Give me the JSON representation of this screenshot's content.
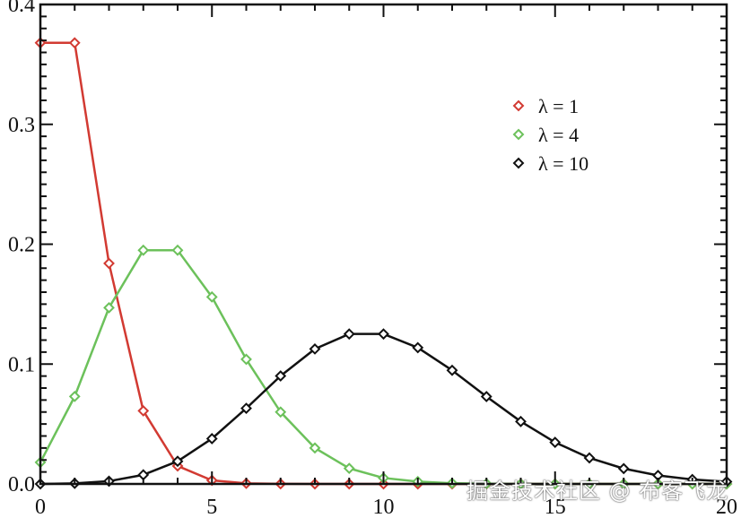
{
  "chart_data": {
    "type": "line",
    "title": "",
    "xlabel": "",
    "ylabel": "",
    "xlim": [
      0,
      20
    ],
    "ylim": [
      0,
      0.4
    ],
    "x_ticks": [
      0,
      5,
      10,
      15,
      20
    ],
    "y_ticks": [
      0.0,
      0.1,
      0.2,
      0.3,
      0.4
    ],
    "x_tick_labels": [
      "0",
      "5",
      "10",
      "15",
      "20"
    ],
    "y_tick_labels": [
      "0.0",
      "0.1",
      "0.2",
      "0.3",
      "0.4"
    ],
    "grid": false,
    "legend_position": "upper right",
    "marker": "diamond",
    "x": [
      0,
      1,
      2,
      3,
      4,
      5,
      6,
      7,
      8,
      9,
      10,
      11,
      12,
      13,
      14,
      15,
      16,
      17,
      18,
      19,
      20
    ],
    "series": [
      {
        "name": "λ = 1",
        "color": "#d23a32",
        "values": [
          0.368,
          0.368,
          0.184,
          0.061,
          0.015,
          0.003,
          0.0005,
          0.0001,
          0,
          0,
          0,
          0,
          0,
          0,
          0,
          0,
          0,
          0,
          0,
          0,
          0
        ]
      },
      {
        "name": "λ = 4",
        "color": "#6cc15b",
        "values": [
          0.018,
          0.073,
          0.147,
          0.195,
          0.195,
          0.156,
          0.104,
          0.06,
          0.03,
          0.013,
          0.005,
          0.002,
          0.0006,
          0.0002,
          0,
          0,
          0,
          0,
          0,
          0,
          0
        ]
      },
      {
        "name": "λ = 10",
        "color": "#111111",
        "values": [
          0.0,
          0.0005,
          0.0023,
          0.0076,
          0.0189,
          0.0378,
          0.0631,
          0.0901,
          0.1126,
          0.1251,
          0.1251,
          0.1137,
          0.0948,
          0.0729,
          0.0521,
          0.0347,
          0.0217,
          0.0128,
          0.0071,
          0.0037,
          0.0019
        ]
      }
    ]
  },
  "legend": {
    "items": [
      {
        "label": "λ = 1",
        "color": "#d23a32"
      },
      {
        "label": "λ = 4",
        "color": "#6cc15b"
      },
      {
        "label": "λ = 10",
        "color": "#111111"
      }
    ]
  },
  "watermark": "掘金技术社区 @ 布客飞龙"
}
